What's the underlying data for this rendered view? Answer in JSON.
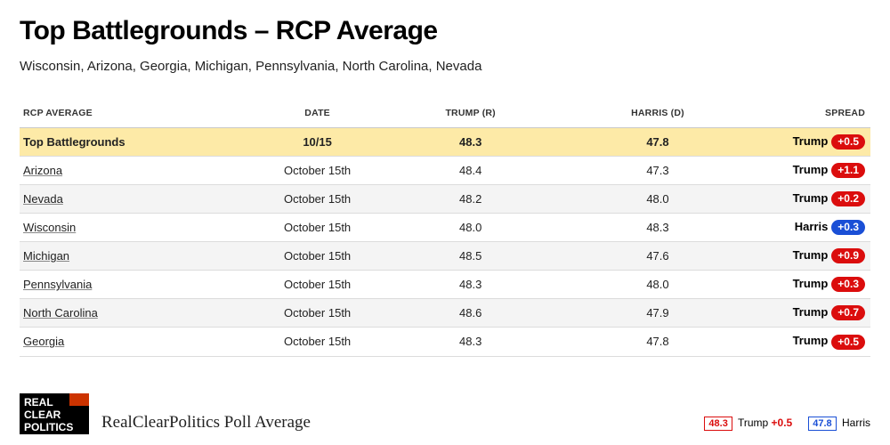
{
  "title": "Top Battlegrounds – RCP Average",
  "subtitle": "Wisconsin, Arizona, Georgia, Michigan, Pennsylvania, North Carolina, Nevada",
  "colors": {
    "rep": "#db0d0d",
    "dem": "#1a4fd6",
    "highlight_row": "#fdeaa7",
    "alt_row": "#f4f4f4",
    "border": "#dcdcdc"
  },
  "table": {
    "columns": [
      "RCP AVERAGE",
      "DATE",
      "TRUMP (R)",
      "HARRIS (D)",
      "SPREAD"
    ],
    "rows": [
      {
        "name": "Top Battlegrounds",
        "date": "10/15",
        "trump": "48.3",
        "harris": "47.8",
        "leader": "Trump",
        "margin": "+0.5",
        "party": "R",
        "highlight": true
      },
      {
        "name": "Arizona",
        "date": "October 15th",
        "trump": "48.4",
        "harris": "47.3",
        "leader": "Trump",
        "margin": "+1.1",
        "party": "R"
      },
      {
        "name": "Nevada",
        "date": "October 15th",
        "trump": "48.2",
        "harris": "48.0",
        "leader": "Trump",
        "margin": "+0.2",
        "party": "R"
      },
      {
        "name": "Wisconsin",
        "date": "October 15th",
        "trump": "48.0",
        "harris": "48.3",
        "leader": "Harris",
        "margin": "+0.3",
        "party": "D"
      },
      {
        "name": "Michigan",
        "date": "October 15th",
        "trump": "48.5",
        "harris": "47.6",
        "leader": "Trump",
        "margin": "+0.9",
        "party": "R"
      },
      {
        "name": "Pennsylvania",
        "date": "October 15th",
        "trump": "48.3",
        "harris": "48.0",
        "leader": "Trump",
        "margin": "+0.3",
        "party": "R"
      },
      {
        "name": "North Carolina",
        "date": "October 15th",
        "trump": "48.6",
        "harris": "47.9",
        "leader": "Trump",
        "margin": "+0.7",
        "party": "R"
      },
      {
        "name": "Georgia",
        "date": "October 15th",
        "trump": "48.3",
        "harris": "47.8",
        "leader": "Trump",
        "margin": "+0.5",
        "party": "R"
      }
    ]
  },
  "footer": {
    "logo_lines": [
      "REAL",
      "CLEAR",
      "POLITICS"
    ],
    "caption": "RealClearPolitics Poll Average",
    "summary": {
      "trump_value": "48.3",
      "trump_label": "Trump",
      "trump_margin": "+0.5",
      "harris_value": "47.8",
      "harris_label": "Harris"
    }
  }
}
